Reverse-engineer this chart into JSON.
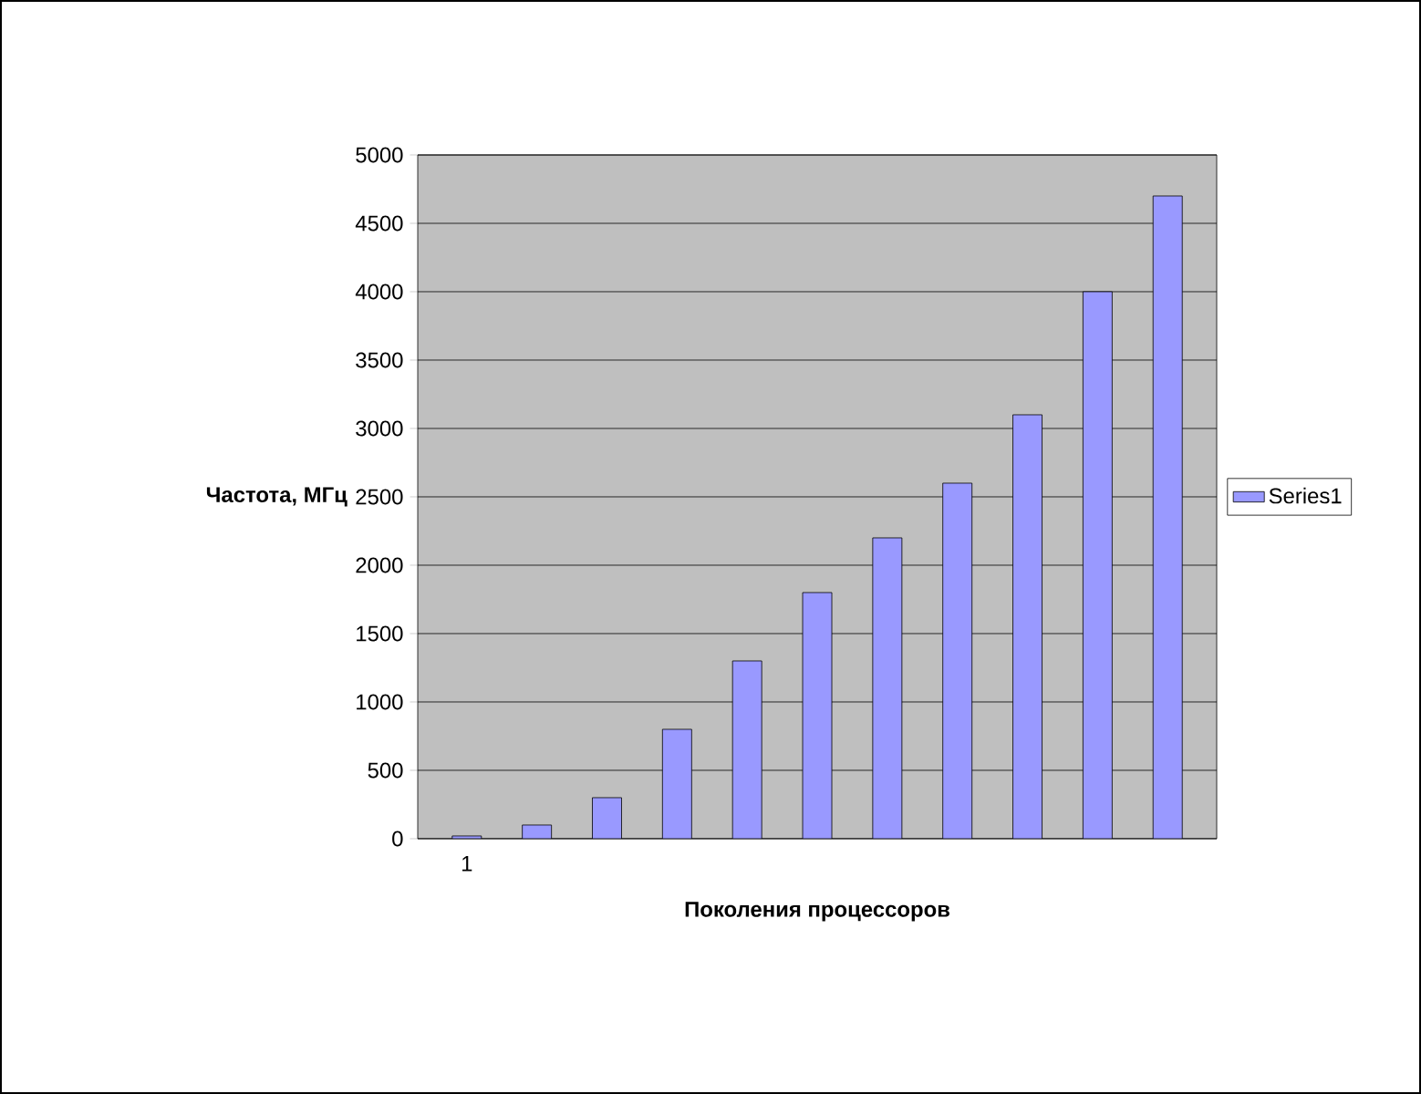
{
  "chart_data": {
    "type": "bar",
    "xlabel": "Поколения процессоров",
    "ylabel": "Частота, МГц",
    "categories": [
      "1",
      null,
      null,
      null,
      null,
      null,
      null,
      null,
      null,
      null,
      null
    ],
    "series": [
      {
        "name": "Series1",
        "color": "#9999ff",
        "values": [
          20,
          100,
          300,
          800,
          1300,
          1800,
          2200,
          2600,
          3100,
          4000,
          4700
        ]
      }
    ],
    "ylim": [
      0,
      5000
    ],
    "yticks": [
      0,
      500,
      1000,
      1500,
      2000,
      2500,
      3000,
      3500,
      4000,
      4500,
      5000
    ],
    "grid": "y",
    "legend": "right"
  }
}
